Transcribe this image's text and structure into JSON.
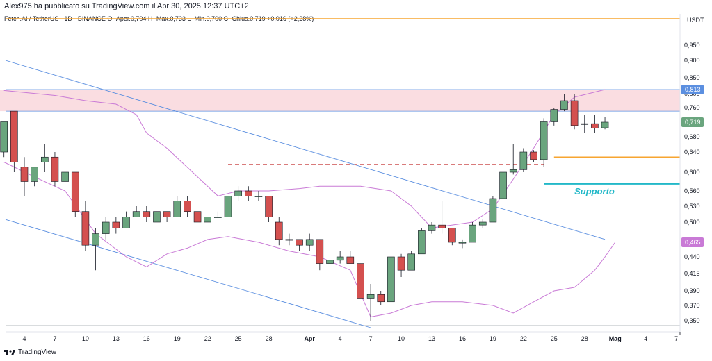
{
  "header": {
    "publisher_line": "Alex975 ha pubblicato su TradingView.com il Apr 30, 2025 12:37 UTC+2",
    "symbol_line": "Fetch.AI / TetherUS · 1D · BINANCE  O  ·Aper.0,704  H  ·Max.0,733  L  ·Min.0,700  C  ·Chius.0,719  +0,016 (+2,28%)",
    "currency": "USDT"
  },
  "brand": {
    "name": "TradingView"
  },
  "colors": {
    "up": "#6aa57e",
    "down": "#d4504f",
    "bollinger": "#c97ad6",
    "trendline": "#5b8fe0",
    "resistance_zone": "#f9d7dc",
    "orange": "#f7a531",
    "support": "#22b8c8",
    "dashed": "#c22c2c"
  },
  "chart_data": {
    "type": "candlestick",
    "y_axis_ticks": [
      "0,950",
      "0,900",
      "0,850",
      "0,800",
      "0,760",
      "0,719",
      "0,680",
      "0,640",
      "0,600",
      "0,560",
      "0,530",
      "0,500",
      "0,465",
      "0,440",
      "0,415",
      "0,390",
      "0,370",
      "0,350"
    ],
    "x_axis_labels": [
      "4",
      "7",
      "10",
      "13",
      "16",
      "19",
      "22",
      "25",
      "28",
      "Apr",
      "4",
      "7",
      "10",
      "13",
      "16",
      "19",
      "22",
      "25",
      "28",
      "Mag",
      "4",
      "7"
    ],
    "price_tags": [
      {
        "label": "0,813",
        "value": 0.813,
        "color": "#5b8fe0"
      },
      {
        "label": "0,719",
        "value": 0.719,
        "color": "#6aa57e"
      },
      {
        "label": "0,465",
        "value": 0.465,
        "color": "#c97ad6"
      }
    ],
    "support_label": "Supporto",
    "candles": [
      {
        "date": "2025-03-02",
        "o": 0.64,
        "h": 0.72,
        "l": 0.63,
        "c": 0.72
      },
      {
        "date": "2025-03-03",
        "o": 0.75,
        "h": 0.75,
        "l": 0.6,
        "c": 0.62
      },
      {
        "date": "2025-03-04",
        "o": 0.61,
        "h": 0.63,
        "l": 0.55,
        "c": 0.58
      },
      {
        "date": "2025-03-05",
        "o": 0.58,
        "h": 0.61,
        "l": 0.57,
        "c": 0.61
      },
      {
        "date": "2025-03-06",
        "o": 0.62,
        "h": 0.66,
        "l": 0.6,
        "c": 0.63
      },
      {
        "date": "2025-03-07",
        "o": 0.63,
        "h": 0.64,
        "l": 0.57,
        "c": 0.58
      },
      {
        "date": "2025-03-08",
        "o": 0.58,
        "h": 0.61,
        "l": 0.58,
        "c": 0.6
      },
      {
        "date": "2025-03-09",
        "o": 0.6,
        "h": 0.6,
        "l": 0.51,
        "c": 0.52
      },
      {
        "date": "2025-03-10",
        "o": 0.52,
        "h": 0.54,
        "l": 0.45,
        "c": 0.46
      },
      {
        "date": "2025-03-11",
        "o": 0.46,
        "h": 0.49,
        "l": 0.42,
        "c": 0.48
      },
      {
        "date": "2025-03-12",
        "o": 0.48,
        "h": 0.51,
        "l": 0.47,
        "c": 0.5
      },
      {
        "date": "2025-03-13",
        "o": 0.5,
        "h": 0.51,
        "l": 0.48,
        "c": 0.49
      },
      {
        "date": "2025-03-14",
        "o": 0.49,
        "h": 0.52,
        "l": 0.49,
        "c": 0.51
      },
      {
        "date": "2025-03-15",
        "o": 0.51,
        "h": 0.53,
        "l": 0.51,
        "c": 0.52
      },
      {
        "date": "2025-03-16",
        "o": 0.52,
        "h": 0.53,
        "l": 0.5,
        "c": 0.51
      },
      {
        "date": "2025-03-17",
        "o": 0.5,
        "h": 0.52,
        "l": 0.5,
        "c": 0.52
      },
      {
        "date": "2025-03-18",
        "o": 0.52,
        "h": 0.52,
        "l": 0.5,
        "c": 0.51
      },
      {
        "date": "2025-03-19",
        "o": 0.51,
        "h": 0.55,
        "l": 0.51,
        "c": 0.54
      },
      {
        "date": "2025-03-20",
        "o": 0.54,
        "h": 0.55,
        "l": 0.51,
        "c": 0.52
      },
      {
        "date": "2025-03-21",
        "o": 0.52,
        "h": 0.52,
        "l": 0.5,
        "c": 0.5
      },
      {
        "date": "2025-03-22",
        "o": 0.5,
        "h": 0.51,
        "l": 0.5,
        "c": 0.51
      },
      {
        "date": "2025-03-23",
        "o": 0.51,
        "h": 0.52,
        "l": 0.51,
        "c": 0.51
      },
      {
        "date": "2025-03-24",
        "o": 0.51,
        "h": 0.55,
        "l": 0.51,
        "c": 0.55
      },
      {
        "date": "2025-03-25",
        "o": 0.55,
        "h": 0.57,
        "l": 0.54,
        "c": 0.56
      },
      {
        "date": "2025-03-26",
        "o": 0.56,
        "h": 0.57,
        "l": 0.54,
        "c": 0.55
      },
      {
        "date": "2025-03-27",
        "o": 0.55,
        "h": 0.56,
        "l": 0.54,
        "c": 0.55
      },
      {
        "date": "2025-03-28",
        "o": 0.55,
        "h": 0.55,
        "l": 0.5,
        "c": 0.51
      },
      {
        "date": "2025-03-29",
        "o": 0.5,
        "h": 0.51,
        "l": 0.46,
        "c": 0.47
      },
      {
        "date": "2025-03-30",
        "o": 0.47,
        "h": 0.48,
        "l": 0.46,
        "c": 0.47
      },
      {
        "date": "2025-03-31",
        "o": 0.47,
        "h": 0.47,
        "l": 0.45,
        "c": 0.46
      },
      {
        "date": "2025-04-01",
        "o": 0.46,
        "h": 0.48,
        "l": 0.45,
        "c": 0.47
      },
      {
        "date": "2025-04-02",
        "o": 0.47,
        "h": 0.47,
        "l": 0.42,
        "c": 0.43
      },
      {
        "date": "2025-04-03",
        "o": 0.43,
        "h": 0.44,
        "l": 0.41,
        "c": 0.435
      },
      {
        "date": "2025-04-04",
        "o": 0.435,
        "h": 0.45,
        "l": 0.43,
        "c": 0.44
      },
      {
        "date": "2025-04-05",
        "o": 0.44,
        "h": 0.45,
        "l": 0.43,
        "c": 0.43
      },
      {
        "date": "2025-04-06",
        "o": 0.43,
        "h": 0.43,
        "l": 0.38,
        "c": 0.38
      },
      {
        "date": "2025-04-07",
        "o": 0.38,
        "h": 0.4,
        "l": 0.35,
        "c": 0.385
      },
      {
        "date": "2025-04-08",
        "o": 0.385,
        "h": 0.39,
        "l": 0.37,
        "c": 0.375
      },
      {
        "date": "2025-04-09",
        "o": 0.375,
        "h": 0.44,
        "l": 0.36,
        "c": 0.44
      },
      {
        "date": "2025-04-10",
        "o": 0.44,
        "h": 0.445,
        "l": 0.41,
        "c": 0.42
      },
      {
        "date": "2025-04-11",
        "o": 0.42,
        "h": 0.45,
        "l": 0.42,
        "c": 0.445
      },
      {
        "date": "2025-04-12",
        "o": 0.445,
        "h": 0.49,
        "l": 0.445,
        "c": 0.485
      },
      {
        "date": "2025-04-13",
        "o": 0.485,
        "h": 0.5,
        "l": 0.48,
        "c": 0.495
      },
      {
        "date": "2025-04-14",
        "o": 0.495,
        "h": 0.54,
        "l": 0.48,
        "c": 0.49
      },
      {
        "date": "2025-04-15",
        "o": 0.49,
        "h": 0.49,
        "l": 0.46,
        "c": 0.465
      },
      {
        "date": "2025-04-16",
        "o": 0.465,
        "h": 0.47,
        "l": 0.455,
        "c": 0.465
      },
      {
        "date": "2025-04-17",
        "o": 0.465,
        "h": 0.5,
        "l": 0.465,
        "c": 0.495
      },
      {
        "date": "2025-04-18",
        "o": 0.495,
        "h": 0.505,
        "l": 0.49,
        "c": 0.5
      },
      {
        "date": "2025-04-19",
        "o": 0.5,
        "h": 0.55,
        "l": 0.5,
        "c": 0.545
      },
      {
        "date": "2025-04-20",
        "o": 0.545,
        "h": 0.61,
        "l": 0.54,
        "c": 0.6
      },
      {
        "date": "2025-04-21",
        "o": 0.6,
        "h": 0.66,
        "l": 0.595,
        "c": 0.605
      },
      {
        "date": "2025-04-22",
        "o": 0.605,
        "h": 0.65,
        "l": 0.6,
        "c": 0.64
      },
      {
        "date": "2025-04-23",
        "o": 0.64,
        "h": 0.645,
        "l": 0.62,
        "c": 0.625
      },
      {
        "date": "2025-04-24",
        "o": 0.625,
        "h": 0.73,
        "l": 0.61,
        "c": 0.72
      },
      {
        "date": "2025-04-25",
        "o": 0.72,
        "h": 0.76,
        "l": 0.71,
        "c": 0.755
      },
      {
        "date": "2025-04-26",
        "o": 0.755,
        "h": 0.8,
        "l": 0.75,
        "c": 0.78
      },
      {
        "date": "2025-04-27",
        "o": 0.78,
        "h": 0.8,
        "l": 0.7,
        "c": 0.71
      },
      {
        "date": "2025-04-28",
        "o": 0.715,
        "h": 0.74,
        "l": 0.69,
        "c": 0.715
      },
      {
        "date": "2025-04-29",
        "o": 0.715,
        "h": 0.74,
        "l": 0.69,
        "c": 0.703
      },
      {
        "date": "2025-04-30",
        "o": 0.704,
        "h": 0.733,
        "l": 0.7,
        "c": 0.719
      }
    ],
    "bollinger_upper": [
      {
        "date": "2025-03-02",
        "v": 0.81
      },
      {
        "date": "2025-03-07",
        "v": 0.795
      },
      {
        "date": "2025-03-10",
        "v": 0.78
      },
      {
        "date": "2025-03-13",
        "v": 0.77
      },
      {
        "date": "2025-03-15",
        "v": 0.74
      },
      {
        "date": "2025-03-16",
        "v": 0.69
      },
      {
        "date": "2025-03-18",
        "v": 0.65
      },
      {
        "date": "2025-03-21",
        "v": 0.59
      },
      {
        "date": "2025-03-23",
        "v": 0.55
      },
      {
        "date": "2025-03-25",
        "v": 0.56
      },
      {
        "date": "2025-03-28",
        "v": 0.56
      },
      {
        "date": "2025-03-31",
        "v": 0.565
      },
      {
        "date": "2025-04-02",
        "v": 0.57
      },
      {
        "date": "2025-04-06",
        "v": 0.57
      },
      {
        "date": "2025-04-09",
        "v": 0.56
      },
      {
        "date": "2025-04-11",
        "v": 0.53
      },
      {
        "date": "2025-04-13",
        "v": 0.49
      },
      {
        "date": "2025-04-15",
        "v": 0.495
      },
      {
        "date": "2025-04-17",
        "v": 0.5
      },
      {
        "date": "2025-04-19",
        "v": 0.525
      },
      {
        "date": "2025-04-21",
        "v": 0.585
      },
      {
        "date": "2025-04-23",
        "v": 0.65
      },
      {
        "date": "2025-04-25",
        "v": 0.74
      },
      {
        "date": "2025-04-27",
        "v": 0.79
      },
      {
        "date": "2025-04-30",
        "v": 0.813
      }
    ],
    "bollinger_lower": [
      {
        "date": "2025-03-02",
        "v": 0.62
      },
      {
        "date": "2025-03-05",
        "v": 0.59
      },
      {
        "date": "2025-03-08",
        "v": 0.56
      },
      {
        "date": "2025-03-11",
        "v": 0.48
      },
      {
        "date": "2025-03-14",
        "v": 0.44
      },
      {
        "date": "2025-03-16",
        "v": 0.425
      },
      {
        "date": "2025-03-18",
        "v": 0.445
      },
      {
        "date": "2025-03-20",
        "v": 0.455
      },
      {
        "date": "2025-03-22",
        "v": 0.47
      },
      {
        "date": "2025-03-24",
        "v": 0.475
      },
      {
        "date": "2025-03-27",
        "v": 0.465
      },
      {
        "date": "2025-03-30",
        "v": 0.45
      },
      {
        "date": "2025-04-02",
        "v": 0.44
      },
      {
        "date": "2025-04-05",
        "v": 0.42
      },
      {
        "date": "2025-04-07",
        "v": 0.355
      },
      {
        "date": "2025-04-09",
        "v": 0.36
      },
      {
        "date": "2025-04-11",
        "v": 0.37
      },
      {
        "date": "2025-04-13",
        "v": 0.375
      },
      {
        "date": "2025-04-16",
        "v": 0.375
      },
      {
        "date": "2025-04-19",
        "v": 0.37
      },
      {
        "date": "2025-04-21",
        "v": 0.36
      },
      {
        "date": "2025-04-23",
        "v": 0.375
      },
      {
        "date": "2025-04-25",
        "v": 0.39
      },
      {
        "date": "2025-04-27",
        "v": 0.395
      },
      {
        "date": "2025-04-29",
        "v": 0.42
      },
      {
        "date": "2025-04-30",
        "v": 0.44
      },
      {
        "date": "2025-05-01",
        "v": 0.465
      }
    ],
    "trendlines": [
      {
        "from": {
          "date": "2025-03-02",
          "v": 0.9
        },
        "to": {
          "date": "2025-04-30",
          "v": 0.47
        }
      },
      {
        "from": {
          "date": "2025-03-02",
          "v": 0.505
        },
        "to": {
          "date": "2025-04-07",
          "v": 0.34
        }
      }
    ],
    "resistance_zone": {
      "from": "2025-03-02",
      "top": 0.813,
      "bottom": 0.75
    },
    "horizontal_levels": [
      {
        "name": "top-orange",
        "value": 1.0,
        "from": "2025-03-02",
        "color": "#f7a531"
      },
      {
        "name": "orange-support",
        "value": 0.63,
        "from": "2025-04-25",
        "color": "#f7a531"
      },
      {
        "name": "cyan-support",
        "value": 0.575,
        "from": "2025-04-24",
        "color": "#22b8c8"
      },
      {
        "name": "dashed-level",
        "value": 0.615,
        "from": "2025-03-24",
        "to": "2025-04-24",
        "color": "#c22c2c"
      },
      {
        "name": "bottom-grey",
        "value": 0.343,
        "from": "2025-03-02",
        "color": "#9aa0a6"
      }
    ]
  }
}
